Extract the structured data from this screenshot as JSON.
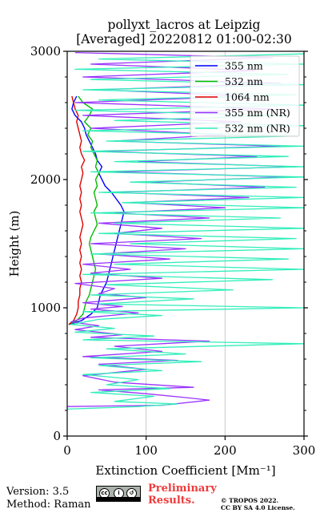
{
  "footer": {
    "version": "Version: 3.5",
    "method": "Method: Raman",
    "preliminary": [
      "Preliminary",
      "Results."
    ],
    "copyright": [
      "© TROPOS 2022.",
      "CC BY SA 4.0 License."
    ],
    "license_badge_icon": "cc-by-sa-icon"
  },
  "chart_data": {
    "type": "line",
    "title": [
      "pollyxt_lacros at Leipzig",
      "[Averaged] 20220812 01:00-02:30"
    ],
    "xlabel": "Extinction Coefficient [Mm⁻¹]",
    "ylabel": "Height (m)",
    "xlim": [
      0,
      300
    ],
    "ylim": [
      0,
      3000
    ],
    "xticks": [
      0,
      100,
      200,
      300
    ],
    "yticks": [
      0,
      1000,
      2000,
      3000
    ],
    "grid": true,
    "legend_position": "top-right",
    "series": [
      {
        "name": "355 nm",
        "color": "#0000ff",
        "points": [
          [
            2,
            870
          ],
          [
            18,
            900
          ],
          [
            30,
            950
          ],
          [
            38,
            1000
          ],
          [
            40,
            1050
          ],
          [
            42,
            1100
          ],
          [
            46,
            1150
          ],
          [
            50,
            1200
          ],
          [
            52,
            1250
          ],
          [
            54,
            1300
          ],
          [
            56,
            1350
          ],
          [
            58,
            1400
          ],
          [
            60,
            1450
          ],
          [
            62,
            1500
          ],
          [
            64,
            1550
          ],
          [
            66,
            1600
          ],
          [
            68,
            1650
          ],
          [
            70,
            1700
          ],
          [
            72,
            1750
          ],
          [
            68,
            1800
          ],
          [
            62,
            1850
          ],
          [
            56,
            1900
          ],
          [
            48,
            1950
          ],
          [
            44,
            2000
          ],
          [
            40,
            2050
          ],
          [
            44,
            2100
          ],
          [
            38,
            2150
          ],
          [
            36,
            2200
          ],
          [
            32,
            2250
          ],
          [
            28,
            2300
          ],
          [
            24,
            2350
          ],
          [
            22,
            2400
          ],
          [
            18,
            2450
          ],
          [
            10,
            2500
          ],
          [
            6,
            2550
          ],
          [
            8,
            2600
          ],
          [
            12,
            2650
          ]
        ]
      },
      {
        "name": "532 nm",
        "color": "#00bb00",
        "points": [
          [
            2,
            870
          ],
          [
            12,
            900
          ],
          [
            20,
            950
          ],
          [
            22,
            1000
          ],
          [
            24,
            1050
          ],
          [
            28,
            1100
          ],
          [
            30,
            1150
          ],
          [
            32,
            1200
          ],
          [
            34,
            1250
          ],
          [
            36,
            1300
          ],
          [
            34,
            1350
          ],
          [
            32,
            1400
          ],
          [
            30,
            1450
          ],
          [
            28,
            1500
          ],
          [
            30,
            1550
          ],
          [
            34,
            1600
          ],
          [
            38,
            1650
          ],
          [
            36,
            1700
          ],
          [
            34,
            1750
          ],
          [
            38,
            1800
          ],
          [
            36,
            1850
          ],
          [
            34,
            1900
          ],
          [
            38,
            1950
          ],
          [
            36,
            2000
          ],
          [
            40,
            2050
          ],
          [
            36,
            2100
          ],
          [
            38,
            2150
          ],
          [
            34,
            2200
          ],
          [
            30,
            2250
          ],
          [
            32,
            2300
          ],
          [
            26,
            2350
          ],
          [
            30,
            2400
          ],
          [
            22,
            2450
          ],
          [
            28,
            2500
          ],
          [
            32,
            2550
          ],
          [
            20,
            2600
          ],
          [
            14,
            2650
          ]
        ]
      },
      {
        "name": "1064 nm",
        "color": "#dd0000",
        "points": [
          [
            2,
            870
          ],
          [
            8,
            900
          ],
          [
            12,
            950
          ],
          [
            14,
            1000
          ],
          [
            14,
            1050
          ],
          [
            16,
            1100
          ],
          [
            16,
            1150
          ],
          [
            18,
            1200
          ],
          [
            16,
            1250
          ],
          [
            18,
            1300
          ],
          [
            16,
            1350
          ],
          [
            18,
            1400
          ],
          [
            16,
            1450
          ],
          [
            18,
            1500
          ],
          [
            16,
            1550
          ],
          [
            18,
            1600
          ],
          [
            20,
            1650
          ],
          [
            18,
            1700
          ],
          [
            16,
            1750
          ],
          [
            18,
            1800
          ],
          [
            16,
            1850
          ],
          [
            18,
            1900
          ],
          [
            16,
            1950
          ],
          [
            18,
            2000
          ],
          [
            20,
            2050
          ],
          [
            18,
            2100
          ],
          [
            22,
            2150
          ],
          [
            18,
            2200
          ],
          [
            16,
            2250
          ],
          [
            18,
            2300
          ],
          [
            16,
            2350
          ],
          [
            14,
            2400
          ],
          [
            12,
            2450
          ],
          [
            14,
            2500
          ],
          [
            10,
            2550
          ],
          [
            8,
            2600
          ],
          [
            6,
            2650
          ]
        ]
      },
      {
        "name": "355 nm (NR)",
        "color": "#9933ff",
        "points": [
          [
            0,
            230
          ],
          [
            120,
            240
          ],
          [
            180,
            280
          ],
          [
            150,
            300
          ],
          [
            100,
            330
          ],
          [
            40,
            360
          ],
          [
            160,
            380
          ],
          [
            60,
            420
          ],
          [
            20,
            470
          ],
          [
            100,
            520
          ],
          [
            40,
            560
          ],
          [
            140,
            590
          ],
          [
            20,
            620
          ],
          [
            120,
            660
          ],
          [
            60,
            700
          ],
          [
            180,
            740
          ],
          [
            30,
            770
          ],
          [
            70,
            790
          ],
          [
            10,
            830
          ],
          [
            40,
            860
          ],
          [
            5,
            890
          ],
          [
            20,
            920
          ],
          [
            90,
            960
          ],
          [
            30,
            990
          ],
          [
            70,
            1010
          ],
          [
            20,
            1040
          ],
          [
            100,
            1080
          ],
          [
            40,
            1110
          ],
          [
            60,
            1150
          ],
          [
            10,
            1190
          ],
          [
            120,
            1230
          ],
          [
            30,
            1270
          ],
          [
            80,
            1300
          ],
          [
            20,
            1340
          ],
          [
            130,
            1380
          ],
          [
            40,
            1420
          ],
          [
            150,
            1460
          ],
          [
            30,
            1500
          ],
          [
            170,
            1540
          ],
          [
            60,
            1580
          ],
          [
            120,
            1620
          ],
          [
            40,
            1660
          ],
          [
            180,
            1700
          ],
          [
            60,
            1740
          ],
          [
            200,
            1780
          ],
          [
            80,
            1820
          ],
          [
            230,
            1860
          ],
          [
            60,
            1900
          ],
          [
            250,
            1940
          ],
          [
            100,
            1980
          ],
          [
            280,
            2020
          ],
          [
            60,
            2060
          ],
          [
            290,
            2100
          ],
          [
            90,
            2140
          ],
          [
            240,
            2180
          ],
          [
            40,
            2220
          ],
          [
            270,
            2260
          ],
          [
            60,
            2300
          ],
          [
            200,
            2350
          ],
          [
            30,
            2400
          ],
          [
            220,
            2450
          ],
          [
            20,
            2500
          ],
          [
            260,
            2550
          ],
          [
            10,
            2600
          ],
          [
            230,
            2650
          ],
          [
            40,
            2700
          ],
          [
            270,
            2750
          ],
          [
            20,
            2800
          ],
          [
            240,
            2850
          ],
          [
            30,
            2900
          ],
          [
            260,
            2950
          ],
          [
            10,
            2990
          ]
        ]
      },
      {
        "name": "532 nm (NR)",
        "color": "#33eebb",
        "points": [
          [
            0,
            210
          ],
          [
            90,
            230
          ],
          [
            140,
            250
          ],
          [
            60,
            270
          ],
          [
            110,
            310
          ],
          [
            30,
            340
          ],
          [
            130,
            370
          ],
          [
            50,
            400
          ],
          [
            90,
            440
          ],
          [
            20,
            480
          ],
          [
            120,
            510
          ],
          [
            40,
            550
          ],
          [
            170,
            580
          ],
          [
            30,
            610
          ],
          [
            150,
            640
          ],
          [
            50,
            680
          ],
          [
            300,
            720
          ],
          [
            20,
            750
          ],
          [
            110,
            780
          ],
          [
            10,
            810
          ],
          [
            60,
            840
          ],
          [
            5,
            870
          ],
          [
            40,
            910
          ],
          [
            120,
            940
          ],
          [
            20,
            970
          ],
          [
            300,
            1000
          ],
          [
            40,
            1030
          ],
          [
            160,
            1070
          ],
          [
            30,
            1100
          ],
          [
            210,
            1140
          ],
          [
            50,
            1180
          ],
          [
            260,
            1220
          ],
          [
            20,
            1260
          ],
          [
            300,
            1300
          ],
          [
            60,
            1340
          ],
          [
            280,
            1380
          ],
          [
            30,
            1420
          ],
          [
            300,
            1460
          ],
          [
            80,
            1500
          ],
          [
            290,
            1540
          ],
          [
            40,
            1580
          ],
          [
            300,
            1620
          ],
          [
            60,
            1660
          ],
          [
            270,
            1700
          ],
          [
            30,
            1740
          ],
          [
            300,
            1780
          ],
          [
            70,
            1820
          ],
          [
            300,
            1860
          ],
          [
            40,
            1900
          ],
          [
            290,
            1940
          ],
          [
            80,
            1980
          ],
          [
            300,
            2020
          ],
          [
            30,
            2060
          ],
          [
            300,
            2100
          ],
          [
            60,
            2140
          ],
          [
            280,
            2180
          ],
          [
            20,
            2220
          ],
          [
            300,
            2260
          ],
          [
            50,
            2300
          ],
          [
            290,
            2340
          ],
          [
            20,
            2380
          ],
          [
            300,
            2420
          ],
          [
            60,
            2460
          ],
          [
            280,
            2500
          ],
          [
            10,
            2540
          ],
          [
            300,
            2580
          ],
          [
            40,
            2620
          ],
          [
            290,
            2660
          ],
          [
            20,
            2700
          ],
          [
            300,
            2740
          ],
          [
            30,
            2780
          ],
          [
            280,
            2820
          ],
          [
            10,
            2860
          ],
          [
            300,
            2900
          ],
          [
            40,
            2940
          ],
          [
            300,
            2980
          ]
        ]
      }
    ]
  }
}
